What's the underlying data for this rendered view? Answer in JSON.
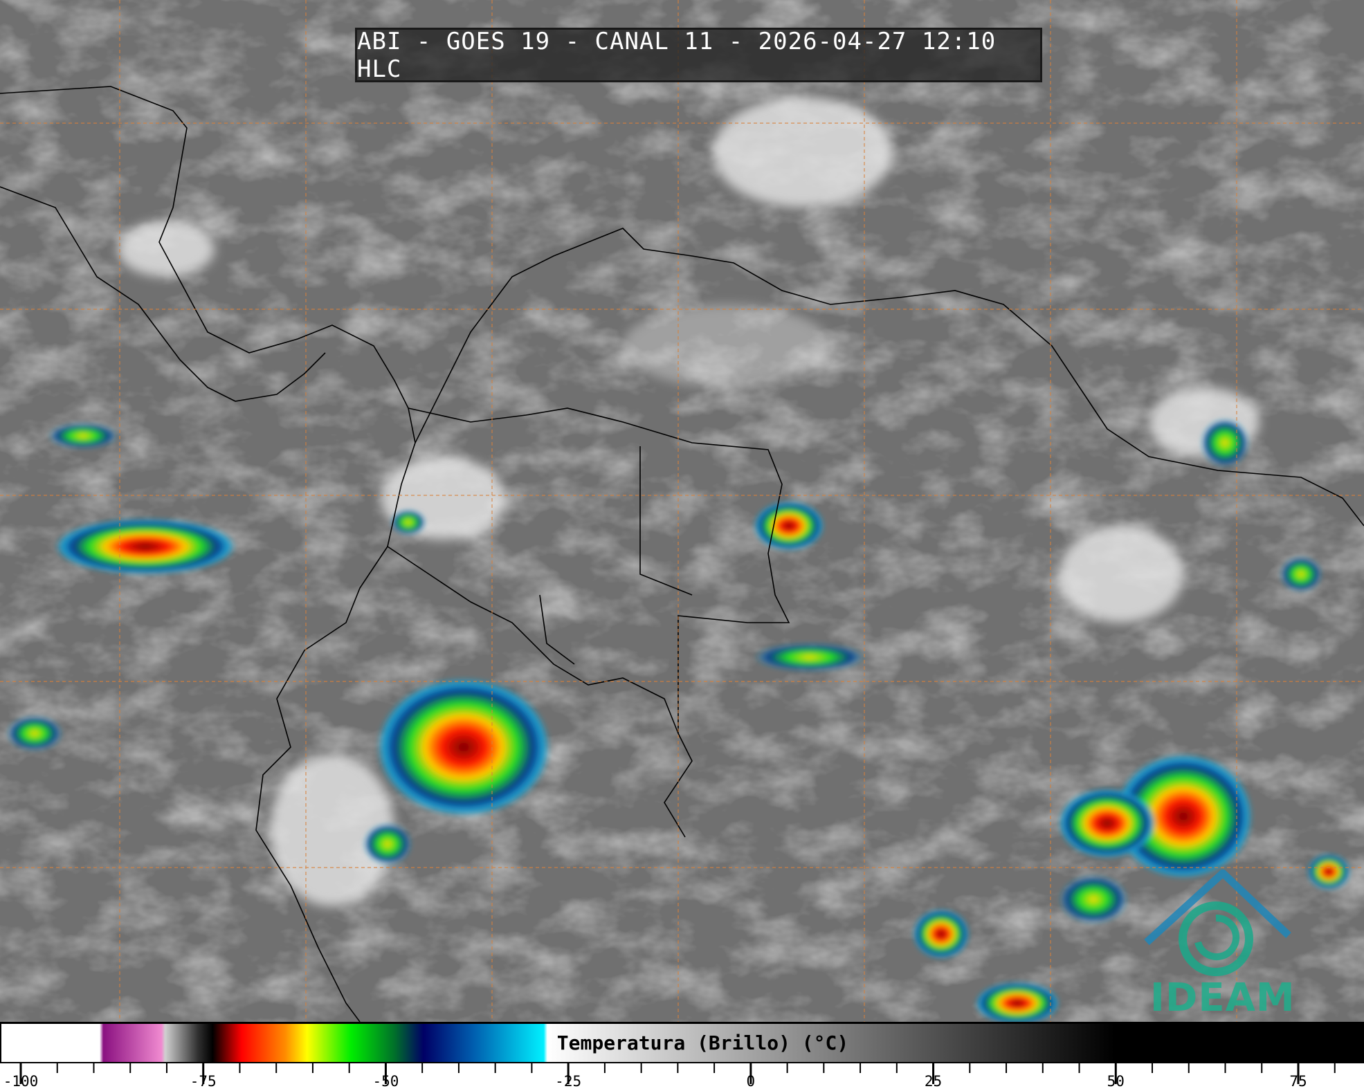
{
  "title": "ABI - GOES 19 - CANAL 11 - 2026-04-27 12:10 HLC",
  "colorbar": {
    "label": "Temperatura (Brillo) (°C)",
    "range": [
      -103,
      84
    ],
    "major_ticks": [
      -100,
      -75,
      -50,
      -25,
      0,
      25,
      50,
      75
    ],
    "tick_labels": [
      "-100",
      "-75",
      "-50",
      "-25",
      "0",
      "25",
      "50",
      "75"
    ],
    "minor_tick_step": 5,
    "stops": [
      {
        "value": -103,
        "color": "#ffffff"
      },
      {
        "value": -89.5,
        "color": "#ffffff"
      },
      {
        "value": -89,
        "color": "#8a1080"
      },
      {
        "value": -81,
        "color": "#f08ad0"
      },
      {
        "value": -80.5,
        "color": "#d0d0d0"
      },
      {
        "value": -76,
        "color": "#303030"
      },
      {
        "value": -74,
        "color": "#000000"
      },
      {
        "value": -70,
        "color": "#ff0000"
      },
      {
        "value": -64,
        "color": "#ff8c00"
      },
      {
        "value": -61,
        "color": "#ffff00"
      },
      {
        "value": -55,
        "color": "#00ee00"
      },
      {
        "value": -49,
        "color": "#00702a"
      },
      {
        "value": -45,
        "color": "#000066"
      },
      {
        "value": -38,
        "color": "#0060b0"
      },
      {
        "value": -28.5,
        "color": "#00f0ff"
      },
      {
        "value": -28,
        "color": "#ffffff"
      },
      {
        "value": 50,
        "color": "#000000"
      },
      {
        "value": 84,
        "color": "#000000"
      }
    ]
  },
  "logo": {
    "text": "IDEAM",
    "color": "#1fae8c"
  },
  "colors": {
    "background_gray": "#707070",
    "graticule": "#d9813a",
    "borders": "#000000"
  }
}
